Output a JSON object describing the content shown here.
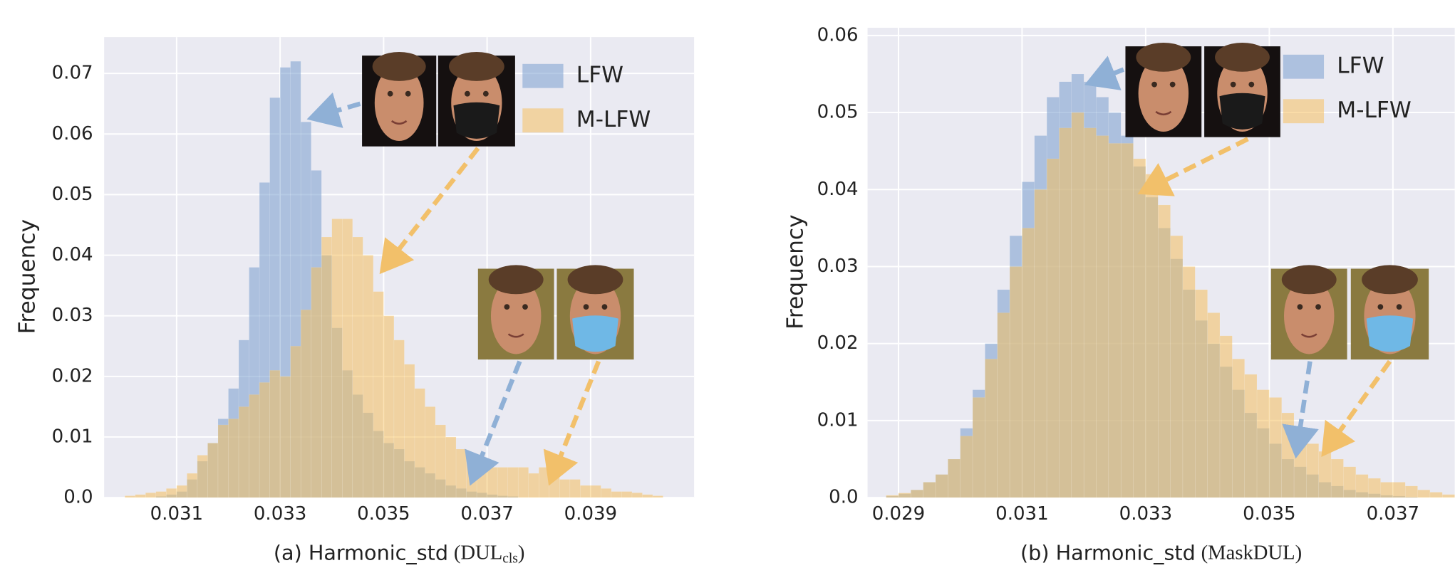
{
  "chart_data": [
    {
      "type": "histogram",
      "ylabel": "Frequency",
      "xlabel_parts": [
        {
          "text": "(a) Harmonic_std"
        },
        {
          "text": "(DUL"
        },
        {
          "text": "cls",
          "subscript": true
        },
        {
          "text": ")"
        }
      ],
      "legend": "upper right",
      "grid": true,
      "xlim": [
        0.0296,
        0.041
      ],
      "ylim": [
        0,
        0.076
      ],
      "xticks": [
        0.031,
        0.033,
        0.035,
        0.037,
        0.039
      ],
      "yticks": [
        {
          "value": 0,
          "label": "0.0"
        },
        0.01,
        0.02,
        0.03,
        0.04,
        0.05,
        0.06,
        0.07
      ],
      "bins": [
        0.03,
        0.0302,
        0.0304,
        0.0306,
        0.0308,
        0.031,
        0.0312,
        0.0314,
        0.0316,
        0.0318,
        0.032,
        0.0322,
        0.0324,
        0.0326,
        0.0328,
        0.033,
        0.0332,
        0.0334,
        0.0336,
        0.0338,
        0.034,
        0.0342,
        0.0344,
        0.0346,
        0.0348,
        0.035,
        0.0352,
        0.0354,
        0.0356,
        0.0358,
        0.036,
        0.0362,
        0.0364,
        0.0366,
        0.0368,
        0.037,
        0.0372,
        0.0374,
        0.0376,
        0.0378,
        0.038,
        0.0382,
        0.0384,
        0.0386,
        0.0388,
        0.039,
        0.0392,
        0.0394,
        0.0396,
        0.0398,
        0.04,
        0.0402,
        0.0404
      ],
      "series": [
        {
          "name": "LFW",
          "color": "#7a9fcf",
          "values": [
            0,
            0,
            0,
            0.0002,
            0.0005,
            0.001,
            0.003,
            0.006,
            0.009,
            0.013,
            0.018,
            0.026,
            0.038,
            0.052,
            0.066,
            0.071,
            0.072,
            0.062,
            0.054,
            0.04,
            0.028,
            0.021,
            0.017,
            0.014,
            0.011,
            0.009,
            0.008,
            0.006,
            0.005,
            0.004,
            0.003,
            0.002,
            0.0015,
            0.001,
            0.0008,
            0.0005,
            0.0003,
            0.0002,
            0,
            0,
            0,
            0,
            0,
            0,
            0,
            0,
            0,
            0,
            0,
            0,
            0,
            0
          ]
        },
        {
          "name": "M-LFW",
          "color": "#f5c060",
          "values": [
            0.0003,
            0.0005,
            0.0008,
            0.001,
            0.0015,
            0.002,
            0.004,
            0.007,
            0.009,
            0.012,
            0.013,
            0.015,
            0.017,
            0.019,
            0.021,
            0.02,
            0.025,
            0.031,
            0.038,
            0.043,
            0.046,
            0.046,
            0.043,
            0.04,
            0.034,
            0.03,
            0.026,
            0.022,
            0.018,
            0.015,
            0.012,
            0.01,
            0.008,
            0.006,
            0.005,
            0.005,
            0.005,
            0.005,
            0.005,
            0.004,
            0.005,
            0.004,
            0.003,
            0.003,
            0.002,
            0.002,
            0.0015,
            0.001,
            0.001,
            0.0008,
            0.0005,
            0.0003
          ]
        }
      ]
    },
    {
      "type": "histogram",
      "ylabel": "Frequency",
      "xlabel_parts": [
        {
          "text": "(b) Harmonic_std"
        },
        {
          "text": "(MaskDUL)"
        }
      ],
      "legend": "upper right",
      "grid": true,
      "xlim": [
        0.0285,
        0.038
      ],
      "ylim": [
        0,
        0.061
      ],
      "xticks": [
        0.029,
        0.031,
        0.033,
        0.035,
        0.037
      ],
      "yticks": [
        {
          "value": 0,
          "label": "0.0"
        },
        0.01,
        0.02,
        0.03,
        0.04,
        0.05,
        0.06
      ],
      "bins": [
        0.0288,
        0.029,
        0.0292,
        0.0294,
        0.0296,
        0.0298,
        0.03,
        0.0302,
        0.0304,
        0.0306,
        0.0308,
        0.031,
        0.0312,
        0.0314,
        0.0316,
        0.0318,
        0.032,
        0.0322,
        0.0324,
        0.0326,
        0.0328,
        0.033,
        0.0332,
        0.0334,
        0.0336,
        0.0338,
        0.034,
        0.0342,
        0.0344,
        0.0346,
        0.0348,
        0.035,
        0.0352,
        0.0354,
        0.0356,
        0.0358,
        0.036,
        0.0362,
        0.0364,
        0.0366,
        0.0368,
        0.037,
        0.0372,
        0.0374,
        0.0376,
        0.0378,
        0.038
      ],
      "series": [
        {
          "name": "LFW",
          "color": "#7a9fcf",
          "values": [
            0.0002,
            0.0005,
            0.001,
            0.002,
            0.003,
            0.005,
            0.009,
            0.014,
            0.02,
            0.027,
            0.034,
            0.041,
            0.047,
            0.052,
            0.054,
            0.055,
            0.054,
            0.052,
            0.05,
            0.047,
            0.043,
            0.039,
            0.035,
            0.031,
            0.027,
            0.023,
            0.02,
            0.017,
            0.014,
            0.011,
            0.009,
            0.007,
            0.005,
            0.004,
            0.003,
            0.002,
            0.0015,
            0.001,
            0.0007,
            0.0005,
            0.0003,
            0.0002,
            0.0001,
            0,
            0,
            0
          ]
        },
        {
          "name": "M-LFW",
          "color": "#f5c060",
          "values": [
            0.0003,
            0.0006,
            0.001,
            0.002,
            0.003,
            0.005,
            0.008,
            0.013,
            0.018,
            0.024,
            0.03,
            0.035,
            0.04,
            0.044,
            0.048,
            0.05,
            0.048,
            0.047,
            0.046,
            0.046,
            0.044,
            0.042,
            0.038,
            0.034,
            0.03,
            0.027,
            0.024,
            0.021,
            0.018,
            0.016,
            0.014,
            0.013,
            0.011,
            0.009,
            0.007,
            0.006,
            0.005,
            0.004,
            0.003,
            0.0025,
            0.002,
            0.002,
            0.0015,
            0.001,
            0.0007,
            0.0004
          ]
        }
      ]
    }
  ]
}
